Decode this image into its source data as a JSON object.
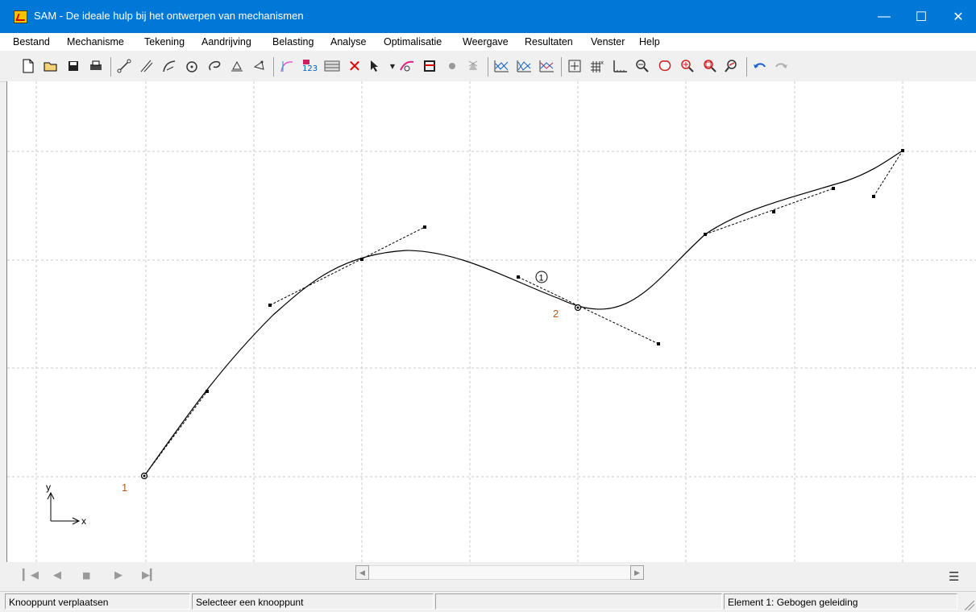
{
  "window": {
    "title": "SAM - De ideale hulp bij het ontwerpen van mechanismen",
    "app_icon": "sam-app-icon",
    "controls": [
      "minimize-icon",
      "maximize-icon",
      "close-icon"
    ]
  },
  "menu": {
    "items": [
      "Bestand",
      "Mechanisme",
      "Tekening",
      "Aandrijving",
      "Belasting",
      "Analyse",
      "Optimalisatie",
      "Weergave",
      "Resultaten",
      "Venster",
      "Help"
    ]
  },
  "toolbar": {
    "icons": [
      "new-file-icon",
      "open-folder-icon",
      "save-icon",
      "print-icon",
      "bar-element-icon",
      "slider-element-icon",
      "curved-guide-icon",
      "gear-icon",
      "cam-icon",
      "support-icon",
      "load-icon",
      "edit-curve-icon",
      "number-nodes-icon",
      "grid-table-icon",
      "delete-icon",
      "select-arrow-icon",
      "drive-icon",
      "frame-icon",
      "fixed-icon",
      "windmill-icon",
      "graph-1-icon",
      "graph-2-icon",
      "graph-3-icon",
      "add-frame-icon",
      "grid-icon",
      "axis-icon",
      "zoom-out-icon",
      "pan-icon",
      "zoom-in-icon",
      "zoom-window-icon",
      "zoom-fit-icon",
      "undo-icon",
      "redo-icon"
    ]
  },
  "canvas": {
    "node_labels": [
      {
        "text": "1",
        "color": "#b05a1a"
      },
      {
        "text": "2",
        "color": "#b05a1a"
      }
    ],
    "element_label": "1",
    "axis": {
      "x": "x",
      "y": "y"
    }
  },
  "navigation": {
    "buttons": [
      "first-frame-icon",
      "previous-frame-icon",
      "stop-icon",
      "next-frame-icon",
      "last-frame-icon"
    ]
  },
  "statusbar": {
    "panel1": "Knooppunt verplaatsen",
    "panel2": "Selecteer een knooppunt",
    "panel3": "",
    "panel4": "Element 1: Gebogen geleiding"
  },
  "colors": {
    "titlebar": "#0078d7",
    "node_label": "#b05a1a",
    "grid": "#c8c8c8"
  }
}
